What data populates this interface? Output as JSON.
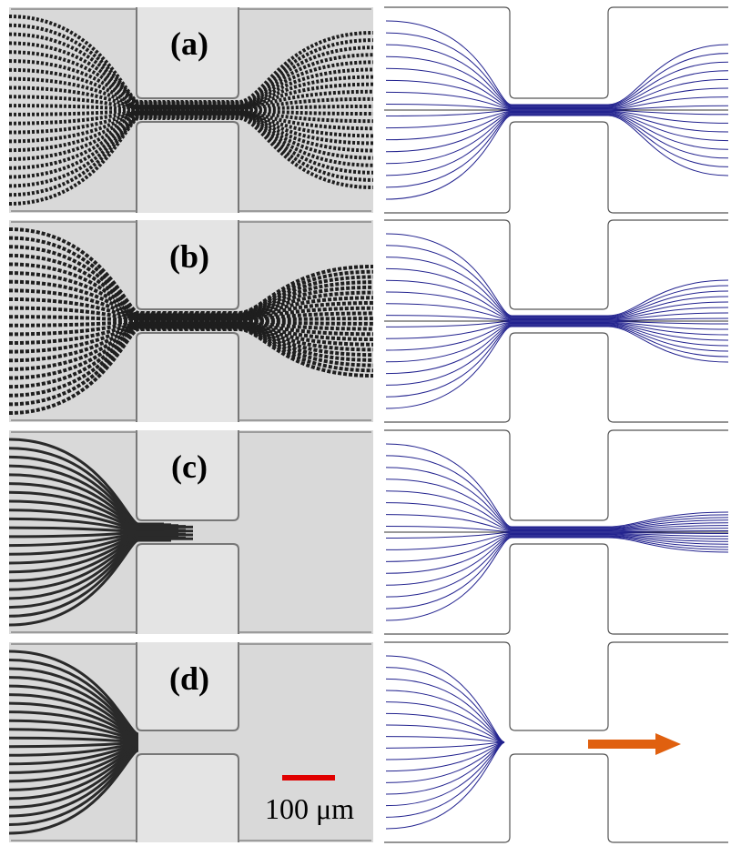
{
  "panels": [
    {
      "label": "(a)"
    },
    {
      "label": "(b)"
    },
    {
      "label": "(c)"
    },
    {
      "label": "(d)"
    }
  ],
  "scale_bar": {
    "label": "100 μm"
  }
}
